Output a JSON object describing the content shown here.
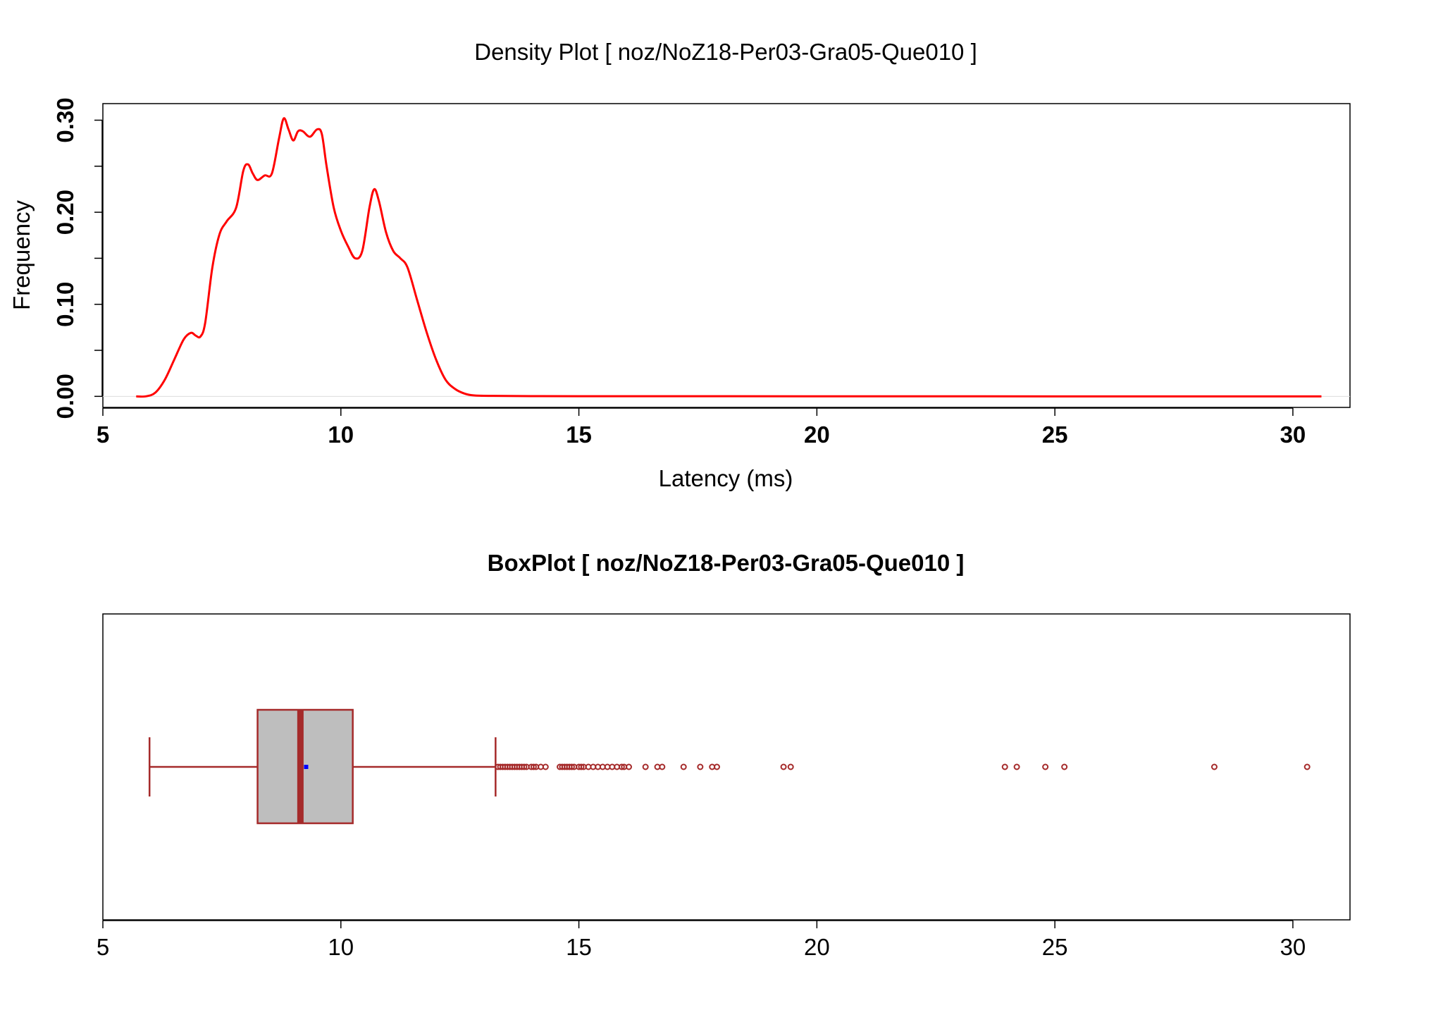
{
  "colors": {
    "density_line": "#ff0000",
    "box_fill": "#bebebe",
    "box_stroke": "#a52a2a",
    "mean_marker": "#0000ff",
    "frame": "#000000"
  },
  "chart_data": [
    {
      "type": "line",
      "title": "Density Plot [ noz/NoZ18-Per03-Gra05-Que010 ]",
      "xlabel": "Latency (ms)",
      "ylabel": "Frequency",
      "xlim": [
        5,
        31.2
      ],
      "ylim": [
        -0.012,
        0.318
      ],
      "xticks": [
        5,
        10,
        15,
        20,
        25,
        30
      ],
      "yticks": [
        0.0,
        0.05,
        0.1,
        0.15,
        0.2,
        0.25,
        0.3
      ],
      "ytick_labels": [
        "0.00",
        "",
        "0.10",
        "",
        "0.20",
        "",
        "0.30"
      ],
      "grid": false,
      "series": [
        {
          "x": [
            5.7,
            5.9,
            6.1,
            6.3,
            6.5,
            6.7,
            6.85,
            6.95,
            7.05,
            7.15,
            7.3,
            7.45,
            7.6,
            7.8,
            7.95,
            8.05,
            8.15,
            8.25,
            8.4,
            8.55,
            8.7,
            8.8,
            8.9,
            9.0,
            9.1,
            9.2,
            9.35,
            9.5,
            9.6,
            9.7,
            9.85,
            10.0,
            10.15,
            10.3,
            10.45,
            10.6,
            10.7,
            10.8,
            10.95,
            11.1,
            11.25,
            11.4,
            11.6,
            11.8,
            12.0,
            12.2,
            12.4,
            12.6,
            12.8,
            13.2,
            14.0,
            15.0,
            20.0,
            25.0,
            30.6
          ],
          "y": [
            0.0,
            0.0,
            0.004,
            0.018,
            0.04,
            0.062,
            0.069,
            0.066,
            0.065,
            0.08,
            0.14,
            0.176,
            0.19,
            0.205,
            0.245,
            0.252,
            0.242,
            0.235,
            0.24,
            0.242,
            0.28,
            0.302,
            0.29,
            0.278,
            0.288,
            0.288,
            0.282,
            0.29,
            0.285,
            0.25,
            0.205,
            0.18,
            0.163,
            0.15,
            0.158,
            0.205,
            0.225,
            0.212,
            0.178,
            0.158,
            0.15,
            0.14,
            0.105,
            0.07,
            0.04,
            0.018,
            0.008,
            0.003,
            0.001,
            0.0005,
            0.0003,
            0.0002,
            0.0001,
            0.0,
            0.0
          ]
        }
      ]
    },
    {
      "type": "box",
      "title": "BoxPlot [ noz/NoZ18-Per03-Gra05-Que010 ]",
      "xlim": [
        5,
        31.2
      ],
      "xticks": [
        5,
        10,
        15,
        20,
        25,
        30
      ],
      "whisker_low": 5.98,
      "q1": 8.25,
      "median": 9.15,
      "mean": 9.27,
      "q3": 10.25,
      "whisker_high": 13.25,
      "outliers": [
        13.3,
        13.35,
        13.4,
        13.45,
        13.5,
        13.55,
        13.6,
        13.65,
        13.7,
        13.75,
        13.8,
        13.85,
        13.9,
        14.0,
        14.05,
        14.1,
        14.2,
        14.3,
        14.6,
        14.65,
        14.7,
        14.75,
        14.8,
        14.85,
        14.9,
        15.0,
        15.05,
        15.1,
        15.2,
        15.3,
        15.4,
        15.5,
        15.6,
        15.7,
        15.8,
        15.9,
        15.95,
        16.05,
        16.4,
        16.65,
        16.75,
        17.2,
        17.55,
        17.8,
        17.9,
        19.3,
        19.45,
        23.95,
        24.2,
        24.8,
        25.2,
        28.35,
        30.3
      ]
    }
  ]
}
